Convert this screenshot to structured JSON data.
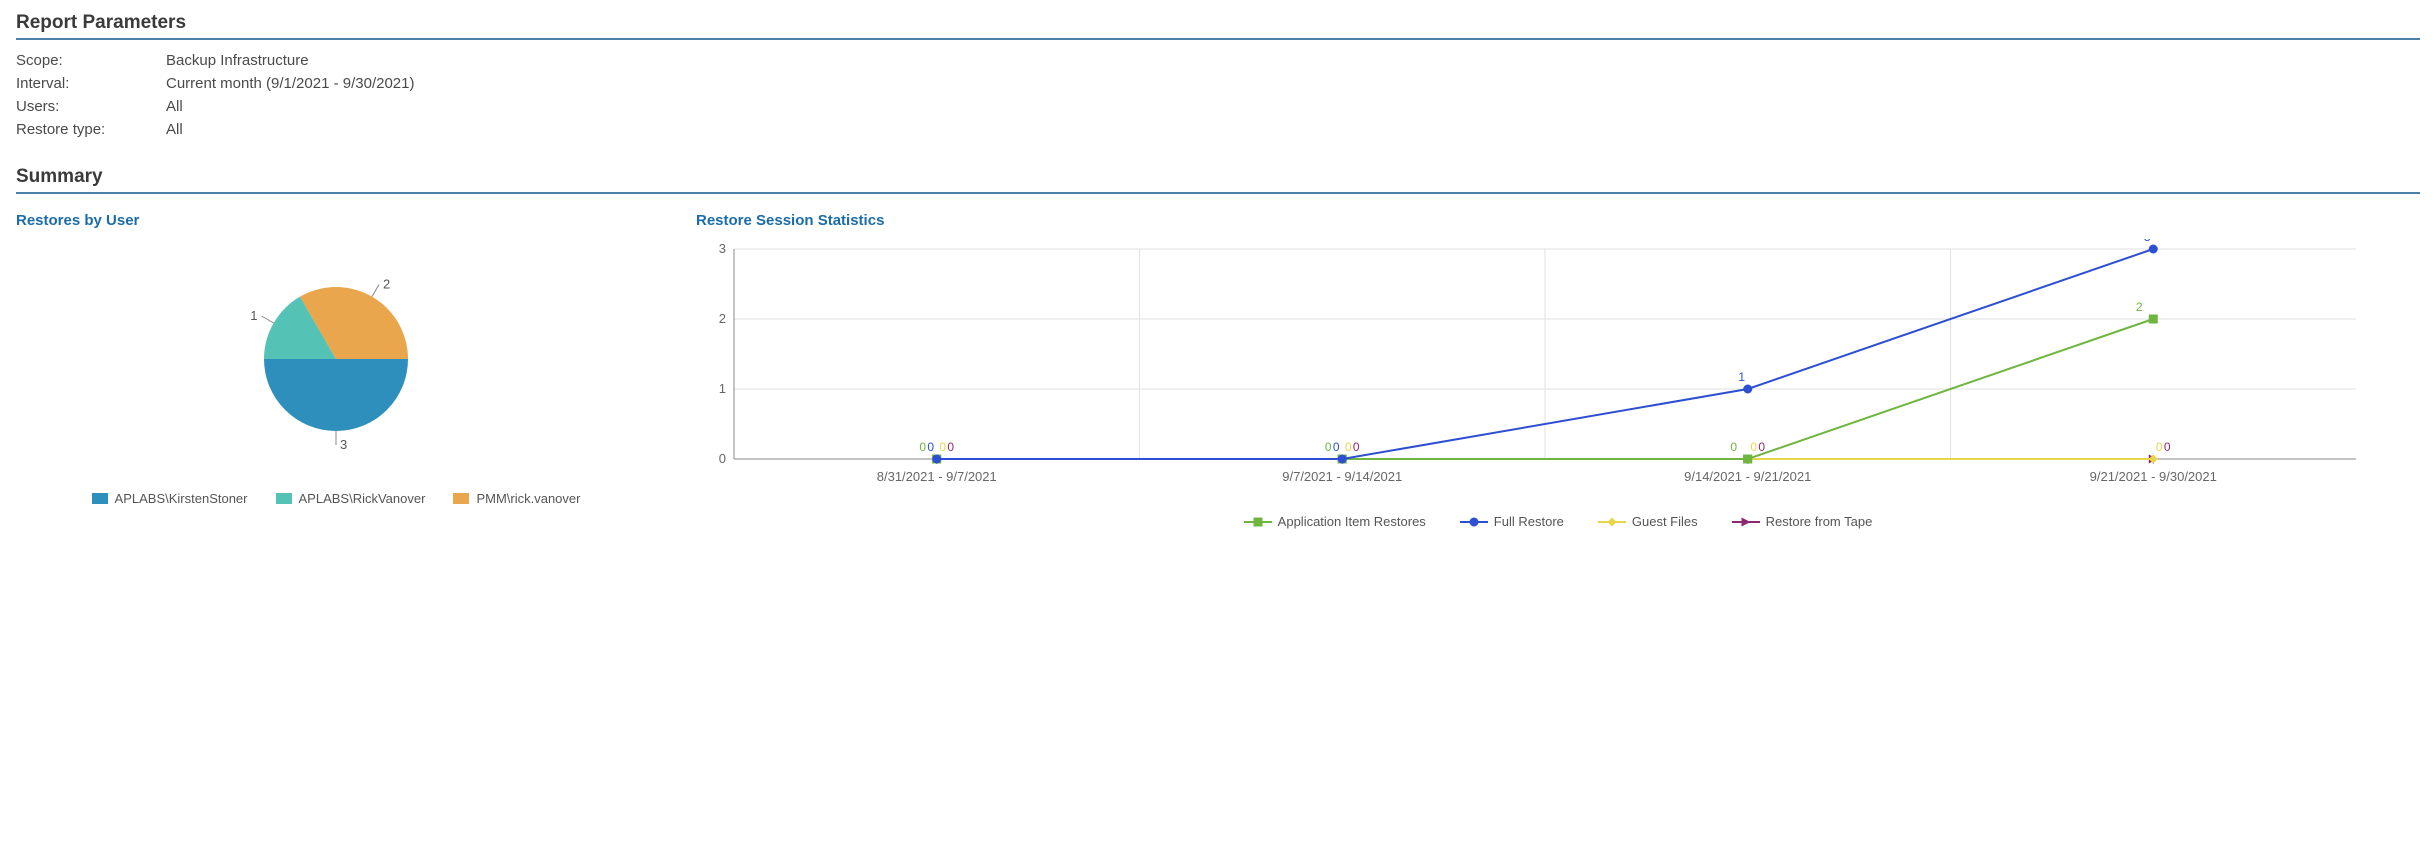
{
  "sections": {
    "report_parameters_title": "Report Parameters",
    "summary_title": "Summary"
  },
  "params": {
    "scope_label": "Scope:",
    "scope_value": "Backup Infrastructure",
    "interval_label": "Interval:",
    "interval_value": "Current month (9/1/2021 - 9/30/2021)",
    "users_label": "Users:",
    "users_value": "All",
    "restore_type_label": "Restore type:",
    "restore_type_value": "All"
  },
  "pie": {
    "title": "Restores by User",
    "slices": [
      {
        "label": "APLABS\\KirstenStoner",
        "value": 3,
        "color": "#2f8fbc"
      },
      {
        "label": "APLABS\\RickVanover",
        "value": 1,
        "color": "#54c3b5"
      },
      {
        "label": "PMM\\rick.vanover",
        "value": 2,
        "color": "#eaa64d"
      }
    ],
    "label_fontsize": 13,
    "label_color": "#555555"
  },
  "line": {
    "title": "Restore Session Statistics",
    "categories": [
      "8/31/2021 - 9/7/2021",
      "9/7/2021 - 9/14/2021",
      "9/14/2021 - 9/21/2021",
      "9/21/2021 - 9/30/2021"
    ],
    "ylim": [
      0,
      3
    ],
    "ytick_step": 1,
    "grid_color": "#e2e2e2",
    "axis_color": "#888888",
    "tick_label_color": "#666666",
    "tick_fontsize": 13,
    "series": [
      {
        "name": "Application Item Restores",
        "color": "#6fb53f",
        "marker": "square",
        "values": [
          0,
          0,
          0,
          2
        ]
      },
      {
        "name": "Full Restore",
        "color": "#2d4fd1",
        "marker": "circle",
        "values": [
          0,
          0,
          1,
          3
        ]
      },
      {
        "name": "Guest Files",
        "color": "#e9d54a",
        "marker": "diamond",
        "values": [
          0,
          0,
          0,
          0
        ]
      },
      {
        "name": "Restore from Tape",
        "color": "#8d2a6f",
        "marker": "triangle",
        "values": [
          0,
          0,
          0,
          0
        ]
      }
    ],
    "value_label_fontsize": 12
  }
}
